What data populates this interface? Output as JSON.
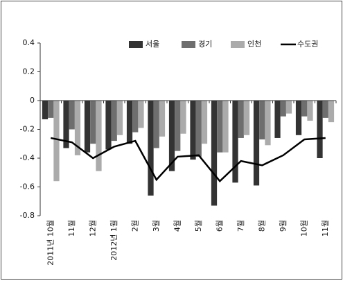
{
  "chart_data": {
    "type": "bar",
    "categories": [
      "2011년 10월",
      "11월",
      "12월",
      "2012년 1월",
      "2월",
      "3월",
      "4월",
      "5월",
      "6월",
      "7월",
      "8월",
      "9월",
      "10월",
      "11월"
    ],
    "series": [
      {
        "name": "서울",
        "color": "#333333",
        "values": [
          -0.13,
          -0.33,
          -0.36,
          -0.34,
          -0.3,
          -0.66,
          -0.49,
          -0.41,
          -0.73,
          -0.57,
          -0.59,
          -0.26,
          -0.24,
          -0.4
        ]
      },
      {
        "name": "경기",
        "color": "#6e6e6e",
        "values": [
          -0.12,
          -0.2,
          -0.3,
          -0.28,
          -0.22,
          -0.33,
          -0.35,
          -0.39,
          -0.36,
          -0.26,
          -0.27,
          -0.11,
          -0.11,
          -0.12
        ]
      },
      {
        "name": "인천",
        "color": "#ababab",
        "values": [
          -0.56,
          -0.38,
          -0.49,
          -0.24,
          -0.19,
          -0.25,
          -0.23,
          -0.3,
          -0.36,
          -0.24,
          -0.31,
          -0.09,
          -0.14,
          -0.15
        ]
      },
      {
        "name": "수도권",
        "color": "#000000",
        "type": "line",
        "values": [
          -0.26,
          -0.29,
          -0.4,
          -0.32,
          -0.28,
          -0.55,
          -0.39,
          -0.38,
          -0.56,
          -0.42,
          -0.45,
          -0.38,
          -0.27,
          -0.26
        ]
      }
    ],
    "ylim": [
      -0.8,
      0.4
    ],
    "yticks": [
      -0.8,
      -0.6,
      -0.4,
      -0.2,
      0,
      0.2,
      0.4
    ],
    "legend": "top-right"
  }
}
